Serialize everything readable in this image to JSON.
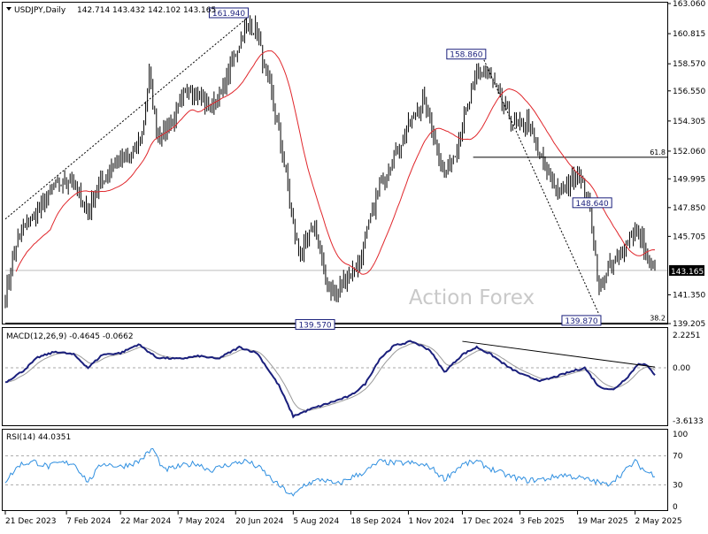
{
  "chart_data": {
    "type": "candlestick",
    "symbol_label": "USDJPY,Daily",
    "ohlc": {
      "open": "142.714",
      "high": "143.432",
      "low": "142.102",
      "close": "143.165"
    },
    "watermark": "Action Forex",
    "price_axis": {
      "ylim": [
        139.205,
        163.06
      ],
      "ticks": [
        "163.060",
        "160.815",
        "158.570",
        "156.550",
        "154.305",
        "152.060",
        "149.995",
        "147.850",
        "145.705",
        "143.165",
        "141.350",
        "139.205"
      ]
    },
    "x_axis": {
      "labels": [
        "21 Dec 2023",
        "7 Feb 2024",
        "22 Mar 2024",
        "7 May 2024",
        "20 Jun 2024",
        "5 Aug 2024",
        "18 Sep 2024",
        "1 Nov 2024",
        "17 Dec 2024",
        "3 Feb 2025",
        "19 Mar 2025",
        "2 May 2025"
      ],
      "label_index": [
        0,
        34,
        64,
        96,
        128,
        160,
        192,
        224,
        254,
        286,
        318,
        350
      ]
    },
    "last_price": 143.165,
    "annotations": [
      {
        "text": "161.940",
        "index": 134,
        "price": 161.94
      },
      {
        "text": "158.860",
        "index": 266,
        "price": 158.86
      },
      {
        "text": "148.640",
        "index": 336,
        "price": 148.64
      },
      {
        "text": "139.570",
        "index": 182,
        "price": 139.57
      },
      {
        "text": "139.870",
        "index": 330,
        "price": 139.87
      }
    ],
    "fib_levels": [
      {
        "text": "61.8",
        "price": 151.6
      },
      {
        "text": "38.2",
        "price": 139.25
      }
    ],
    "anchors": [
      {
        "i": 0,
        "p": 141.2
      },
      {
        "i": 6,
        "p": 145.1
      },
      {
        "i": 12,
        "p": 146.7
      },
      {
        "i": 20,
        "p": 147.9
      },
      {
        "i": 28,
        "p": 149.5
      },
      {
        "i": 36,
        "p": 149.9
      },
      {
        "i": 40,
        "p": 149.0
      },
      {
        "i": 46,
        "p": 147.6
      },
      {
        "i": 52,
        "p": 149.4
      },
      {
        "i": 60,
        "p": 151.2
      },
      {
        "i": 70,
        "p": 151.6
      },
      {
        "i": 76,
        "p": 153.2
      },
      {
        "i": 80,
        "p": 158.0
      },
      {
        "i": 84,
        "p": 153.5
      },
      {
        "i": 88,
        "p": 153.4
      },
      {
        "i": 94,
        "p": 154.5
      },
      {
        "i": 102,
        "p": 156.9
      },
      {
        "i": 108,
        "p": 156.0
      },
      {
        "i": 114,
        "p": 155.4
      },
      {
        "i": 120,
        "p": 156.4
      },
      {
        "i": 128,
        "p": 159.5
      },
      {
        "i": 134,
        "p": 161.4
      },
      {
        "i": 140,
        "p": 161.0
      },
      {
        "i": 144,
        "p": 158.0
      },
      {
        "i": 148,
        "p": 156.3
      },
      {
        "i": 152,
        "p": 153.5
      },
      {
        "i": 156,
        "p": 150.2
      },
      {
        "i": 160,
        "p": 146.4
      },
      {
        "i": 164,
        "p": 144.2
      },
      {
        "i": 168,
        "p": 145.3
      },
      {
        "i": 172,
        "p": 146.7
      },
      {
        "i": 178,
        "p": 142.3
      },
      {
        "i": 184,
        "p": 141.4
      },
      {
        "i": 190,
        "p": 142.8
      },
      {
        "i": 196,
        "p": 143.5
      },
      {
        "i": 202,
        "p": 146.5
      },
      {
        "i": 208,
        "p": 149.5
      },
      {
        "i": 214,
        "p": 151.2
      },
      {
        "i": 220,
        "p": 152.8
      },
      {
        "i": 226,
        "p": 154.3
      },
      {
        "i": 232,
        "p": 155.9
      },
      {
        "i": 236,
        "p": 154.4
      },
      {
        "i": 240,
        "p": 152.3
      },
      {
        "i": 244,
        "p": 150.4
      },
      {
        "i": 250,
        "p": 152.1
      },
      {
        "i": 256,
        "p": 154.8
      },
      {
        "i": 262,
        "p": 157.8
      },
      {
        "i": 266,
        "p": 158.1
      },
      {
        "i": 272,
        "p": 156.9
      },
      {
        "i": 278,
        "p": 155.1
      },
      {
        "i": 284,
        "p": 153.7
      },
      {
        "i": 290,
        "p": 154.3
      },
      {
        "i": 296,
        "p": 151.9
      },
      {
        "i": 302,
        "p": 150.3
      },
      {
        "i": 308,
        "p": 148.9
      },
      {
        "i": 314,
        "p": 149.8
      },
      {
        "i": 318,
        "p": 150.6
      },
      {
        "i": 322,
        "p": 149.2
      },
      {
        "i": 326,
        "p": 146.8
      },
      {
        "i": 330,
        "p": 141.7
      },
      {
        "i": 334,
        "p": 143.1
      },
      {
        "i": 338,
        "p": 143.6
      },
      {
        "i": 342,
        "p": 144.4
      },
      {
        "i": 346,
        "p": 145.6
      },
      {
        "i": 350,
        "p": 146.1
      },
      {
        "i": 354,
        "p": 145.4
      },
      {
        "i": 358,
        "p": 143.7
      },
      {
        "i": 361,
        "p": 143.165
      }
    ],
    "ma_label": "",
    "macd": {
      "label": "MACD(12,26,9) -0.4645 -0.0662",
      "ylim": [
        -3.6133,
        2.2251
      ],
      "ticks": [
        "2.2251",
        "0.00",
        "-3.6133"
      ],
      "anchors": [
        {
          "i": 0,
          "v": -1.0
        },
        {
          "i": 10,
          "v": -0.2
        },
        {
          "i": 18,
          "v": 0.7
        },
        {
          "i": 28,
          "v": 1.1
        },
        {
          "i": 38,
          "v": 0.9
        },
        {
          "i": 46,
          "v": 0.0
        },
        {
          "i": 54,
          "v": 0.9
        },
        {
          "i": 64,
          "v": 1.0
        },
        {
          "i": 74,
          "v": 1.6
        },
        {
          "i": 84,
          "v": 0.7
        },
        {
          "i": 96,
          "v": 0.6
        },
        {
          "i": 108,
          "v": 0.8
        },
        {
          "i": 118,
          "v": 0.6
        },
        {
          "i": 130,
          "v": 1.4
        },
        {
          "i": 140,
          "v": 1.0
        },
        {
          "i": 152,
          "v": -1.2
        },
        {
          "i": 160,
          "v": -3.3
        },
        {
          "i": 170,
          "v": -2.8
        },
        {
          "i": 180,
          "v": -2.4
        },
        {
          "i": 192,
          "v": -1.9
        },
        {
          "i": 200,
          "v": -1.1
        },
        {
          "i": 208,
          "v": 0.6
        },
        {
          "i": 216,
          "v": 1.5
        },
        {
          "i": 226,
          "v": 1.8
        },
        {
          "i": 236,
          "v": 1.2
        },
        {
          "i": 244,
          "v": -0.3
        },
        {
          "i": 254,
          "v": 0.9
        },
        {
          "i": 262,
          "v": 1.4
        },
        {
          "i": 270,
          "v": 0.9
        },
        {
          "i": 280,
          "v": 0.0
        },
        {
          "i": 288,
          "v": -0.5
        },
        {
          "i": 298,
          "v": -0.9
        },
        {
          "i": 306,
          "v": -0.6
        },
        {
          "i": 316,
          "v": -0.2
        },
        {
          "i": 322,
          "v": 0.0
        },
        {
          "i": 330,
          "v": -1.3
        },
        {
          "i": 338,
          "v": -1.5
        },
        {
          "i": 346,
          "v": -0.6
        },
        {
          "i": 352,
          "v": 0.3
        },
        {
          "i": 356,
          "v": 0.2
        },
        {
          "i": 361,
          "v": -0.4645
        }
      ]
    },
    "rsi": {
      "label": "RSI(14) 44.0351",
      "ylim": [
        0,
        100
      ],
      "ticks": [
        "100",
        "70",
        "30",
        "0"
      ],
      "levels": [
        70,
        30
      ],
      "anchors": [
        {
          "i": 0,
          "v": 35
        },
        {
          "i": 8,
          "v": 58
        },
        {
          "i": 16,
          "v": 62
        },
        {
          "i": 24,
          "v": 55
        },
        {
          "i": 30,
          "v": 60
        },
        {
          "i": 38,
          "v": 60
        },
        {
          "i": 46,
          "v": 34
        },
        {
          "i": 54,
          "v": 60
        },
        {
          "i": 64,
          "v": 55
        },
        {
          "i": 74,
          "v": 62
        },
        {
          "i": 82,
          "v": 80
        },
        {
          "i": 88,
          "v": 50
        },
        {
          "i": 96,
          "v": 55
        },
        {
          "i": 106,
          "v": 60
        },
        {
          "i": 114,
          "v": 50
        },
        {
          "i": 124,
          "v": 58
        },
        {
          "i": 134,
          "v": 63
        },
        {
          "i": 142,
          "v": 52
        },
        {
          "i": 150,
          "v": 33
        },
        {
          "i": 160,
          "v": 14
        },
        {
          "i": 166,
          "v": 30
        },
        {
          "i": 176,
          "v": 38
        },
        {
          "i": 184,
          "v": 30
        },
        {
          "i": 192,
          "v": 40
        },
        {
          "i": 200,
          "v": 48
        },
        {
          "i": 208,
          "v": 62
        },
        {
          "i": 216,
          "v": 60
        },
        {
          "i": 226,
          "v": 60
        },
        {
          "i": 236,
          "v": 55
        },
        {
          "i": 244,
          "v": 38
        },
        {
          "i": 254,
          "v": 58
        },
        {
          "i": 262,
          "v": 62
        },
        {
          "i": 270,
          "v": 52
        },
        {
          "i": 280,
          "v": 42
        },
        {
          "i": 290,
          "v": 36
        },
        {
          "i": 300,
          "v": 38
        },
        {
          "i": 310,
          "v": 44
        },
        {
          "i": 318,
          "v": 40
        },
        {
          "i": 326,
          "v": 36
        },
        {
          "i": 334,
          "v": 30
        },
        {
          "i": 342,
          "v": 44
        },
        {
          "i": 350,
          "v": 62
        },
        {
          "i": 356,
          "v": 48
        },
        {
          "i": 361,
          "v": 44.0351
        }
      ]
    },
    "colors": {
      "candle": "#000000",
      "ma": "#e0262b",
      "macd_main": "#1a1f7c",
      "macd_signal": "#9a9a9a",
      "rsi": "#2f8fe0",
      "label_box": "#1a1f7c",
      "watermark": "#c9c9c9",
      "grid": "#000000",
      "level_line": "#888888"
    }
  }
}
